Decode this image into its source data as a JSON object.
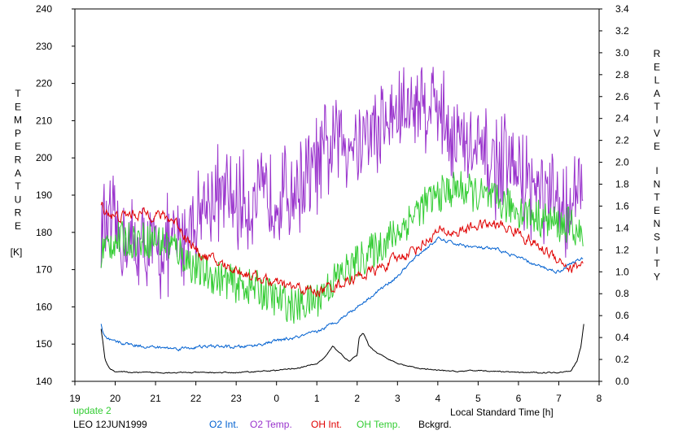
{
  "chart_data": {
    "type": "line",
    "left_axis": {
      "label_letters": [
        "T",
        "E",
        "M",
        "P",
        "E",
        "R",
        "A",
        "T",
        "U",
        "R",
        "E"
      ],
      "unit": "[K]",
      "ylim": [
        140,
        240
      ],
      "ticks": [
        140,
        150,
        160,
        170,
        180,
        190,
        200,
        210,
        220,
        230,
        240
      ]
    },
    "right_axis": {
      "label_letters_1": [
        "R",
        "E",
        "L",
        "A",
        "T",
        "I",
        "V",
        "E"
      ],
      "label_letters_2": [
        "I",
        "N",
        "T",
        "E",
        "N",
        "S",
        "I",
        "T",
        "Y"
      ],
      "ylim": [
        0.0,
        3.4
      ],
      "ticks": [
        "0.0",
        "0.2",
        "0.4",
        "0.6",
        "0.8",
        "1.0",
        "1.2",
        "1.4",
        "1.6",
        "1.8",
        "2.0",
        "2.2",
        "2.4",
        "2.6",
        "2.8",
        "3.0",
        "3.2",
        "3.4"
      ]
    },
    "x_axis": {
      "label": "Local Standard Time [h]",
      "xlim": [
        19,
        32
      ],
      "tick_positions": [
        19,
        20,
        21,
        22,
        23,
        24,
        25,
        26,
        27,
        28,
        29,
        30,
        31,
        32
      ],
      "tick_labels": [
        "19",
        "20",
        "21",
        "22",
        "23",
        "0",
        "1",
        "2",
        "3",
        "4",
        "5",
        "6",
        "7",
        "8"
      ]
    },
    "series": [
      {
        "name": "O2 Int.",
        "axis": "right",
        "color": "#0060d0",
        "noise": 0.012,
        "x": [
          19.65,
          19.7,
          19.75,
          19.8,
          20.0,
          20.5,
          21.0,
          21.5,
          22.0,
          22.5,
          23.0,
          23.5,
          24.0,
          24.5,
          25.0,
          25.5,
          26.0,
          26.5,
          27.0,
          27.5,
          28.0,
          28.5,
          29.0,
          29.5,
          30.0,
          30.5,
          31.0,
          31.3,
          31.6
        ],
        "values": [
          0.52,
          0.43,
          0.4,
          0.38,
          0.36,
          0.33,
          0.31,
          0.3,
          0.31,
          0.32,
          0.31,
          0.33,
          0.37,
          0.4,
          0.45,
          0.55,
          0.68,
          0.82,
          0.96,
          1.15,
          1.3,
          1.25,
          1.22,
          1.2,
          1.13,
          1.05,
          1.0,
          1.08,
          1.12
        ]
      },
      {
        "name": "O2 Temp.",
        "axis": "left",
        "color": "#9933cc",
        "noise": 10,
        "x": [
          19.65,
          20.0,
          20.5,
          21.0,
          21.5,
          22.0,
          22.5,
          23.0,
          23.5,
          24.0,
          24.5,
          25.0,
          25.5,
          26.0,
          26.5,
          27.0,
          27.5,
          28.0,
          28.2,
          28.5,
          29.0,
          29.5,
          30.0,
          30.5,
          31.0,
          31.3,
          31.6
        ],
        "values": [
          182,
          180,
          176,
          175,
          176,
          185,
          190,
          188,
          188,
          190,
          192,
          198,
          205,
          205,
          208,
          212,
          215,
          215,
          210,
          205,
          200,
          198,
          196,
          190,
          186,
          188,
          190
        ]
      },
      {
        "name": "OH Int.",
        "axis": "left",
        "color": "#e00000",
        "noise": 1.2,
        "x": [
          19.65,
          20.0,
          20.5,
          21.0,
          21.5,
          22.0,
          22.5,
          23.0,
          23.5,
          24.0,
          24.5,
          25.0,
          25.5,
          26.0,
          26.5,
          27.0,
          27.5,
          28.0,
          28.5,
          29.0,
          29.5,
          30.0,
          30.5,
          31.0,
          31.3,
          31.6
        ],
        "values": [
          187,
          184,
          185,
          185,
          183,
          175,
          172,
          170,
          168,
          166,
          165,
          164,
          166,
          168,
          170,
          173,
          176,
          180,
          180,
          182,
          182,
          180,
          176,
          173,
          170,
          172
        ]
      },
      {
        "name": "OH Temp.",
        "axis": "left",
        "color": "#33cc33",
        "noise": 5,
        "x": [
          19.65,
          20.0,
          20.5,
          21.0,
          21.5,
          22.0,
          22.5,
          23.0,
          23.5,
          24.0,
          24.5,
          25.0,
          25.5,
          26.0,
          26.5,
          27.0,
          27.5,
          28.0,
          28.5,
          29.0,
          29.5,
          30.0,
          30.5,
          31.0,
          31.3,
          31.6
        ],
        "values": [
          175,
          178,
          178,
          178,
          176,
          170,
          168,
          166,
          165,
          162,
          160,
          162,
          168,
          172,
          176,
          180,
          186,
          190,
          192,
          190,
          188,
          186,
          184,
          182,
          182,
          178
        ]
      },
      {
        "name": "Bckgrd.",
        "axis": "right",
        "color": "#000000",
        "noise": 0.004,
        "x": [
          19.65,
          19.75,
          19.85,
          20.0,
          20.5,
          21.0,
          21.5,
          22.0,
          22.5,
          23.0,
          23.5,
          24.0,
          24.5,
          25.0,
          25.2,
          25.4,
          25.6,
          25.8,
          26.0,
          26.05,
          26.15,
          26.3,
          26.5,
          27.0,
          27.5,
          28.0,
          28.5,
          29.0,
          29.5,
          30.0,
          30.5,
          31.0,
          31.3,
          31.45,
          31.55,
          31.62
        ],
        "values": [
          0.48,
          0.2,
          0.12,
          0.09,
          0.08,
          0.08,
          0.08,
          0.08,
          0.08,
          0.08,
          0.09,
          0.1,
          0.12,
          0.16,
          0.22,
          0.32,
          0.25,
          0.18,
          0.24,
          0.4,
          0.44,
          0.32,
          0.26,
          0.16,
          0.12,
          0.1,
          0.09,
          0.1,
          0.09,
          0.08,
          0.08,
          0.08,
          0.1,
          0.18,
          0.32,
          0.52
        ]
      }
    ],
    "annotations": {
      "update": "update 2",
      "station": "LEO 12JUN1999"
    },
    "legend_placement": "bottom",
    "grid": false
  }
}
